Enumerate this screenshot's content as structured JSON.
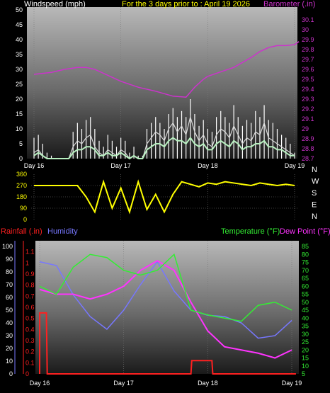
{
  "header": {
    "title": "For the 3 days prior to : April 19 2026"
  },
  "colors": {
    "windspeed": "#d8d8d8",
    "gust": "#ffffff",
    "average": "#b8f0c0",
    "barometer": "#cc33cc",
    "direction": "#ffff00",
    "rainfall": "#ff2020",
    "humidity": "#7777ff",
    "temperature": "#33ee33",
    "dewpoint": "#ff33ff",
    "grid": "#777777",
    "text_light": "#ffffff",
    "text_yellow": "#ffff00"
  },
  "chart_data": [
    {
      "type": "line",
      "name": "wind-barometer",
      "x_ticks": [
        "Day 16",
        "Day 17",
        "Day 18",
        "Day 19"
      ],
      "left_axis": {
        "label": "Windspeed (mph)",
        "ticks": [
          "0",
          "5",
          "10",
          "15",
          "20",
          "25",
          "30",
          "35",
          "40",
          "45",
          "50"
        ],
        "range": [
          0,
          50
        ]
      },
      "right_axis": {
        "label": "Barometer (.in)",
        "ticks": [
          "28.7",
          "28.8",
          "28.9",
          "29",
          "29.1",
          "29.2",
          "29.3",
          "29.4",
          "29.5",
          "29.6",
          "29.7",
          "29.8",
          "29.9",
          "30",
          "30.1"
        ],
        "range": [
          28.7,
          30.2
        ]
      },
      "grid": true,
      "barometer_x": [
        0,
        0.2,
        0.35,
        0.5,
        0.6,
        0.7,
        0.8,
        0.9,
        1.0,
        1.2,
        1.4,
        1.6,
        1.75,
        1.85,
        1.95,
        2.0,
        2.1,
        2.3,
        2.5,
        2.6,
        2.7,
        2.8,
        2.9,
        3.0,
        3.05
      ],
      "barometer": [
        29.55,
        29.57,
        29.6,
        29.62,
        29.62,
        29.6,
        29.56,
        29.52,
        29.48,
        29.42,
        29.38,
        29.33,
        29.32,
        29.42,
        29.5,
        29.53,
        29.56,
        29.62,
        29.72,
        29.78,
        29.82,
        29.84,
        29.84,
        29.85,
        29.88
      ],
      "windspeed_x": [
        0,
        0.05,
        0.1,
        0.15,
        0.2,
        0.25,
        0.3,
        0.35,
        0.4,
        0.45,
        0.5,
        0.55,
        0.6,
        0.65,
        0.7,
        0.75,
        0.8,
        0.85,
        0.9,
        0.95,
        1.0,
        1.05,
        1.1,
        1.15,
        1.2,
        1.25,
        1.3,
        1.35,
        1.4,
        1.45,
        1.5,
        1.55,
        1.6,
        1.65,
        1.7,
        1.75,
        1.8,
        1.85,
        1.9,
        1.95,
        2.0,
        2.05,
        2.1,
        2.15,
        2.2,
        2.25,
        2.3,
        2.35,
        2.4,
        2.45,
        2.5,
        2.55,
        2.6,
        2.65,
        2.7,
        2.75,
        2.8,
        2.85,
        2.9,
        2.95,
        3.0
      ],
      "windspeed": [
        2,
        3,
        1,
        0,
        0,
        0,
        0,
        0,
        0,
        4,
        6,
        5,
        7,
        8,
        4,
        2,
        1,
        3,
        2,
        1,
        3,
        2,
        0,
        1,
        0,
        0,
        5,
        7,
        9,
        8,
        6,
        10,
        12,
        9,
        11,
        8,
        14,
        9,
        6,
        8,
        5,
        4,
        8,
        10,
        9,
        7,
        11,
        8,
        5,
        7,
        6,
        9,
        8,
        12,
        7,
        6,
        5,
        4,
        3,
        2,
        1
      ],
      "gust": [
        7,
        8,
        5,
        2,
        1,
        0,
        0,
        0,
        0,
        9,
        12,
        10,
        13,
        14,
        10,
        6,
        4,
        8,
        6,
        4,
        7,
        6,
        2,
        4,
        1,
        1,
        10,
        12,
        14,
        12,
        10,
        15,
        17,
        14,
        16,
        14,
        20,
        15,
        11,
        13,
        10,
        9,
        14,
        16,
        14,
        12,
        18,
        14,
        11,
        13,
        12,
        16,
        14,
        18,
        13,
        12,
        10,
        8,
        7,
        5,
        2
      ],
      "average": [
        1,
        2,
        1,
        0,
        0,
        0,
        0,
        0,
        0,
        2,
        3,
        3,
        4,
        4,
        3,
        1,
        1,
        2,
        1,
        1,
        2,
        1,
        0,
        1,
        0,
        0,
        3,
        4,
        5,
        5,
        4,
        6,
        7,
        6,
        6,
        5,
        7,
        5,
        4,
        5,
        3,
        3,
        5,
        6,
        5,
        4,
        6,
        5,
        3,
        4,
        4,
        5,
        5,
        6,
        4,
        4,
        3,
        3,
        2,
        1,
        1
      ]
    },
    {
      "type": "scatter",
      "name": "wind-direction",
      "x_ticks": [
        "Day 16",
        "Day 17",
        "Day 18",
        "Day 19"
      ],
      "left_axis": {
        "ticks": [
          "0",
          "90",
          "180",
          "270",
          "360"
        ],
        "range": [
          0,
          360
        ]
      },
      "right_axis": {
        "ticks": [
          "N",
          "W",
          "S",
          "E",
          "N"
        ]
      },
      "grid": true,
      "x": [
        0,
        0.25,
        0.5,
        0.6,
        0.7,
        0.8,
        0.9,
        1.0,
        1.1,
        1.2,
        1.3,
        1.4,
        1.5,
        1.6,
        1.7,
        1.8,
        1.9,
        2.0,
        2.1,
        2.2,
        2.3,
        2.4,
        2.5,
        2.6,
        2.7,
        2.8,
        2.9,
        3.0
      ],
      "direction": [
        270,
        270,
        270,
        180,
        60,
        300,
        90,
        250,
        60,
        300,
        80,
        200,
        60,
        200,
        300,
        280,
        260,
        290,
        280,
        300,
        290,
        280,
        270,
        290,
        280,
        270,
        280,
        270
      ]
    },
    {
      "type": "line",
      "name": "rain-humidity-temp",
      "x_ticks": [
        "Day 16",
        "Day 17",
        "Day 18",
        "Day 19"
      ],
      "left_axis_rain": {
        "label": "Rainfall (.in)",
        "ticks": [
          "0",
          "0.1",
          "0.2",
          "0.3",
          "0.4",
          "0.5",
          "0.6",
          "0.7",
          "0.8",
          "0.9",
          "1",
          "1.1"
        ],
        "range": [
          0,
          1.2
        ]
      },
      "left_axis_humidity": {
        "label": "Humidity",
        "ticks": [
          "0",
          "10",
          "20",
          "30",
          "40",
          "50",
          "60",
          "70",
          "80",
          "90",
          "100"
        ],
        "range": [
          0,
          100
        ]
      },
      "right_axis": {
        "label_temp": "Temperature (°F)",
        "label_dew": "Dew Point (°F)",
        "ticks": [
          "5",
          "10",
          "15",
          "20",
          "25",
          "30",
          "35",
          "40",
          "45",
          "50",
          "55",
          "60",
          "65",
          "70",
          "75",
          "80",
          "85"
        ],
        "range": [
          5,
          85
        ]
      },
      "grid": true,
      "x": [
        0,
        0.2,
        0.4,
        0.6,
        0.8,
        1.0,
        1.2,
        1.4,
        1.6,
        1.8,
        2.0,
        2.2,
        2.4,
        2.6,
        2.8,
        3.0
      ],
      "humidity": [
        88,
        85,
        62,
        45,
        35,
        50,
        70,
        88,
        65,
        50,
        46,
        45,
        40,
        28,
        30,
        42
      ],
      "temperature": [
        60,
        55,
        72,
        80,
        78,
        70,
        67,
        70,
        80,
        45,
        42,
        40,
        38,
        48,
        50,
        45
      ],
      "dewpoint": [
        58,
        55,
        55,
        52,
        55,
        60,
        70,
        76,
        70,
        50,
        32,
        22,
        20,
        18,
        15,
        20
      ],
      "rain_x": [
        0,
        0.001,
        0.08,
        0.09,
        1.8,
        1.81,
        2.05,
        2.06,
        3.05
      ],
      "rainfall": [
        0,
        0.55,
        0.55,
        0,
        0,
        0.12,
        0.12,
        0,
        0
      ]
    }
  ]
}
